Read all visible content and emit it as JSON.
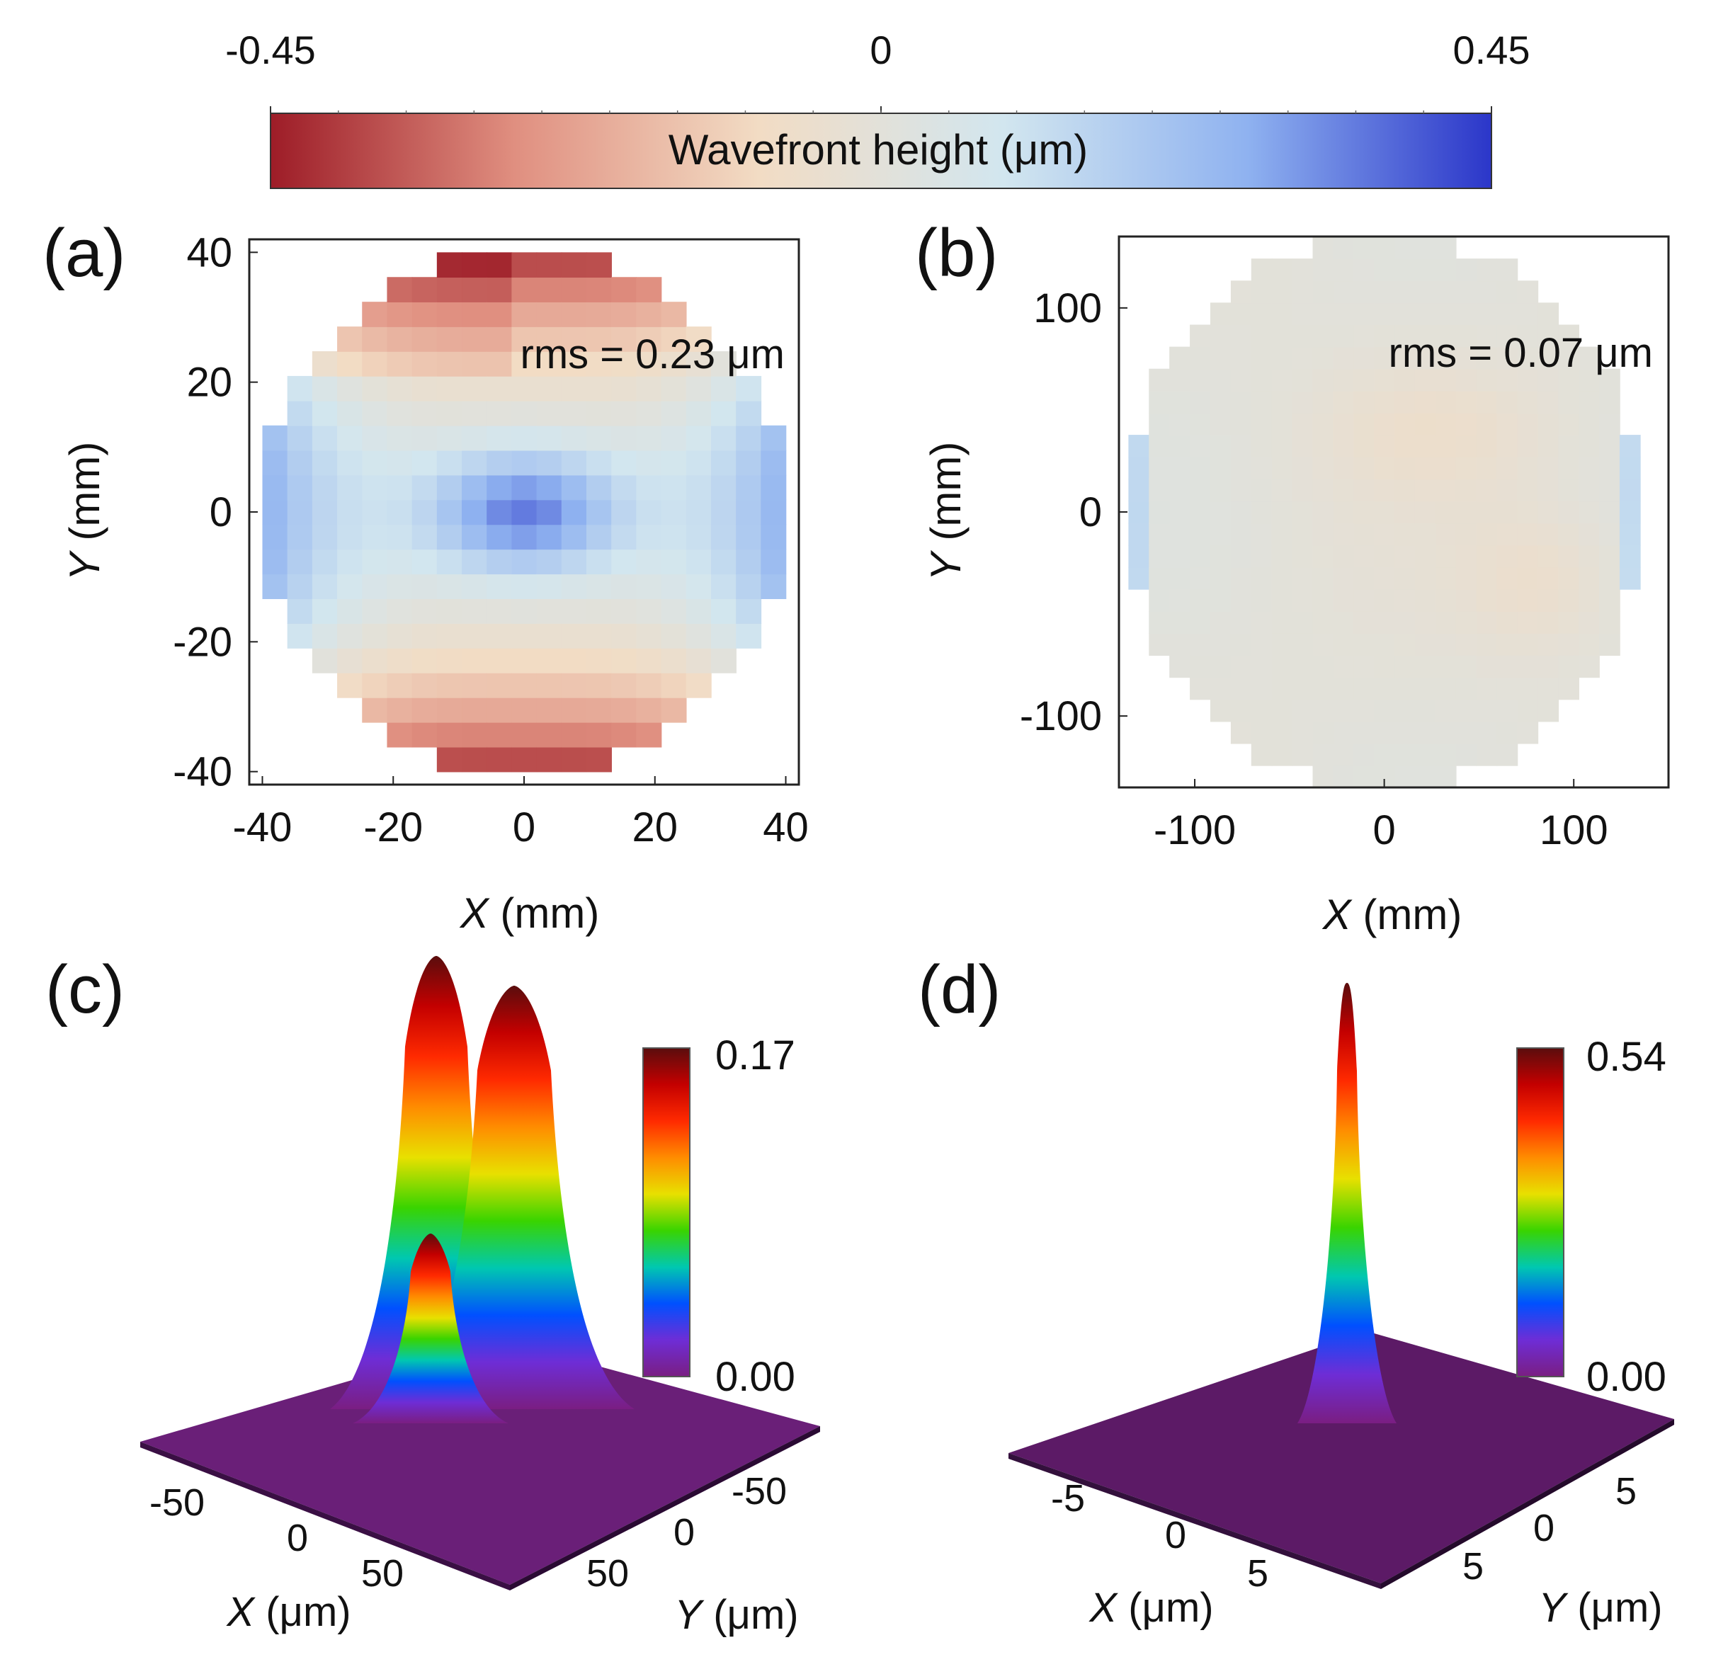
{
  "colorbar": {
    "label": "Wavefront height (μm)",
    "ticks": [
      "-0.45",
      "0",
      "0.45"
    ],
    "range": [
      -0.45,
      0.45
    ],
    "colors": [
      "#9d1c27",
      "#e08f80",
      "#f2dcc4",
      "#d2e6ef",
      "#8fb2f0",
      "#2b36c9"
    ]
  },
  "chart_data": [
    {
      "panel": "(a)",
      "type": "heatmap",
      "xlabel_var": "X",
      "xlabel_unit": " (mm)",
      "ylabel_var": "Y",
      "ylabel_unit": " (mm)",
      "xlim": [
        -42,
        42
      ],
      "ylim": [
        -42,
        42
      ],
      "xticks": [
        "-40",
        "-20",
        "0",
        "20",
        "40"
      ],
      "yticks": [
        "40",
        "20",
        "0",
        "-20",
        "-40"
      ],
      "annotation": "rms = 0.23 μm",
      "aperture_radius": 40,
      "pattern": "astigmatism",
      "value_range": [
        -0.45,
        0.45
      ]
    },
    {
      "panel": "(b)",
      "type": "heatmap",
      "xlabel_var": "X",
      "xlabel_unit": " (mm)",
      "ylabel_var": "Y",
      "ylabel_unit": " (mm)",
      "xlim": [
        -140,
        150
      ],
      "ylim": [
        -135,
        135
      ],
      "xticks": [
        "-100",
        "0",
        "100"
      ],
      "yticks": [
        "100",
        "0",
        "-100"
      ],
      "annotation": "rms = 0.07 μm",
      "aperture_radius": 135,
      "pattern": "residual",
      "value_range": [
        -0.45,
        0.45
      ]
    },
    {
      "panel": "(c)",
      "type": "surface",
      "xlabel_var": "X",
      "xlabel_unit": " (μm)",
      "ylabel_var": "Y",
      "ylabel_unit": " (μm)",
      "xticks": [
        "-50",
        "0",
        "50"
      ],
      "yticks": [
        "-50",
        "0",
        "50"
      ],
      "colorbar_max": "0.17",
      "colorbar_min": "0.00",
      "peak_max": 0.17,
      "description_values": {
        "peaks": 3
      }
    },
    {
      "panel": "(d)",
      "type": "surface",
      "xlabel_var": "X",
      "xlabel_unit": " (μm)",
      "ylabel_var": "Y",
      "ylabel_unit": " (μm)",
      "xticks": [
        "-5",
        "0",
        "5"
      ],
      "yticks": [
        "5",
        "0",
        "5"
      ],
      "colorbar_max": "0.54",
      "colorbar_min": "0.00",
      "peak_max": 0.54
    }
  ],
  "rainbow": [
    "#5a0d0d",
    "#c40000",
    "#ff2a00",
    "#ff8c00",
    "#e8e000",
    "#39d400",
    "#00c8b0",
    "#0050ff",
    "#6e2dd6",
    "#7a1e82"
  ]
}
